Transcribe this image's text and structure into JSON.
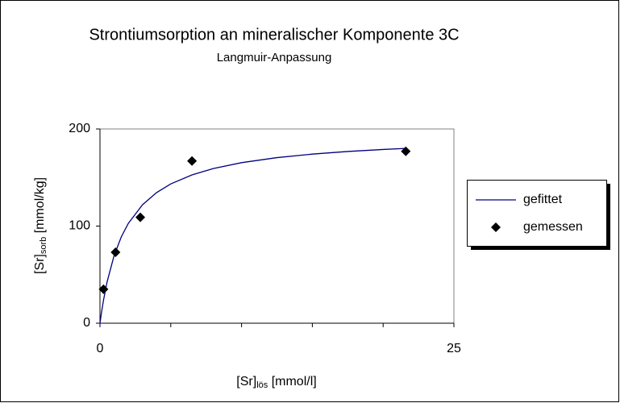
{
  "chart_data": {
    "type": "scatter",
    "title": "Strontiumsorption an mineralischer Komponente 3C",
    "subtitle": "Langmuir-Anpassung",
    "ylabel": {
      "main": "[Sr]",
      "sub": "sorb",
      "unit": " [mmol/kg]"
    },
    "xlabel": {
      "main": "[Sr]",
      "sub": "lös",
      "unit": " [mmol/l]"
    },
    "xlim": [
      0,
      25
    ],
    "xticks": [
      0,
      25
    ],
    "xminor_ticks": [
      5,
      10,
      15,
      20
    ],
    "ylim": [
      0,
      200
    ],
    "yticks": [
      0,
      100,
      200
    ],
    "legend": "right",
    "series": [
      {
        "name": "gefittet",
        "color": "#000080",
        "kind": "line",
        "x": [
          0,
          0.1,
          0.25,
          0.5,
          1,
          1.5,
          2,
          3,
          4,
          5,
          6.5,
          8,
          10,
          12.5,
          15,
          17.5,
          20,
          21.6
        ],
        "values": [
          0,
          10.3,
          23.8,
          42.4,
          69.7,
          88.7,
          102.7,
          121.9,
          134.5,
          143.4,
          152.7,
          159.2,
          165.3,
          170.5,
          174.1,
          176.8,
          178.9,
          180.0
        ]
      },
      {
        "name": "gemessen",
        "color": "#000000",
        "kind": "marker",
        "x": [
          0.25,
          1.1,
          2.85,
          6.5,
          21.6
        ],
        "values": [
          35,
          73,
          109,
          167,
          177
        ]
      }
    ]
  }
}
